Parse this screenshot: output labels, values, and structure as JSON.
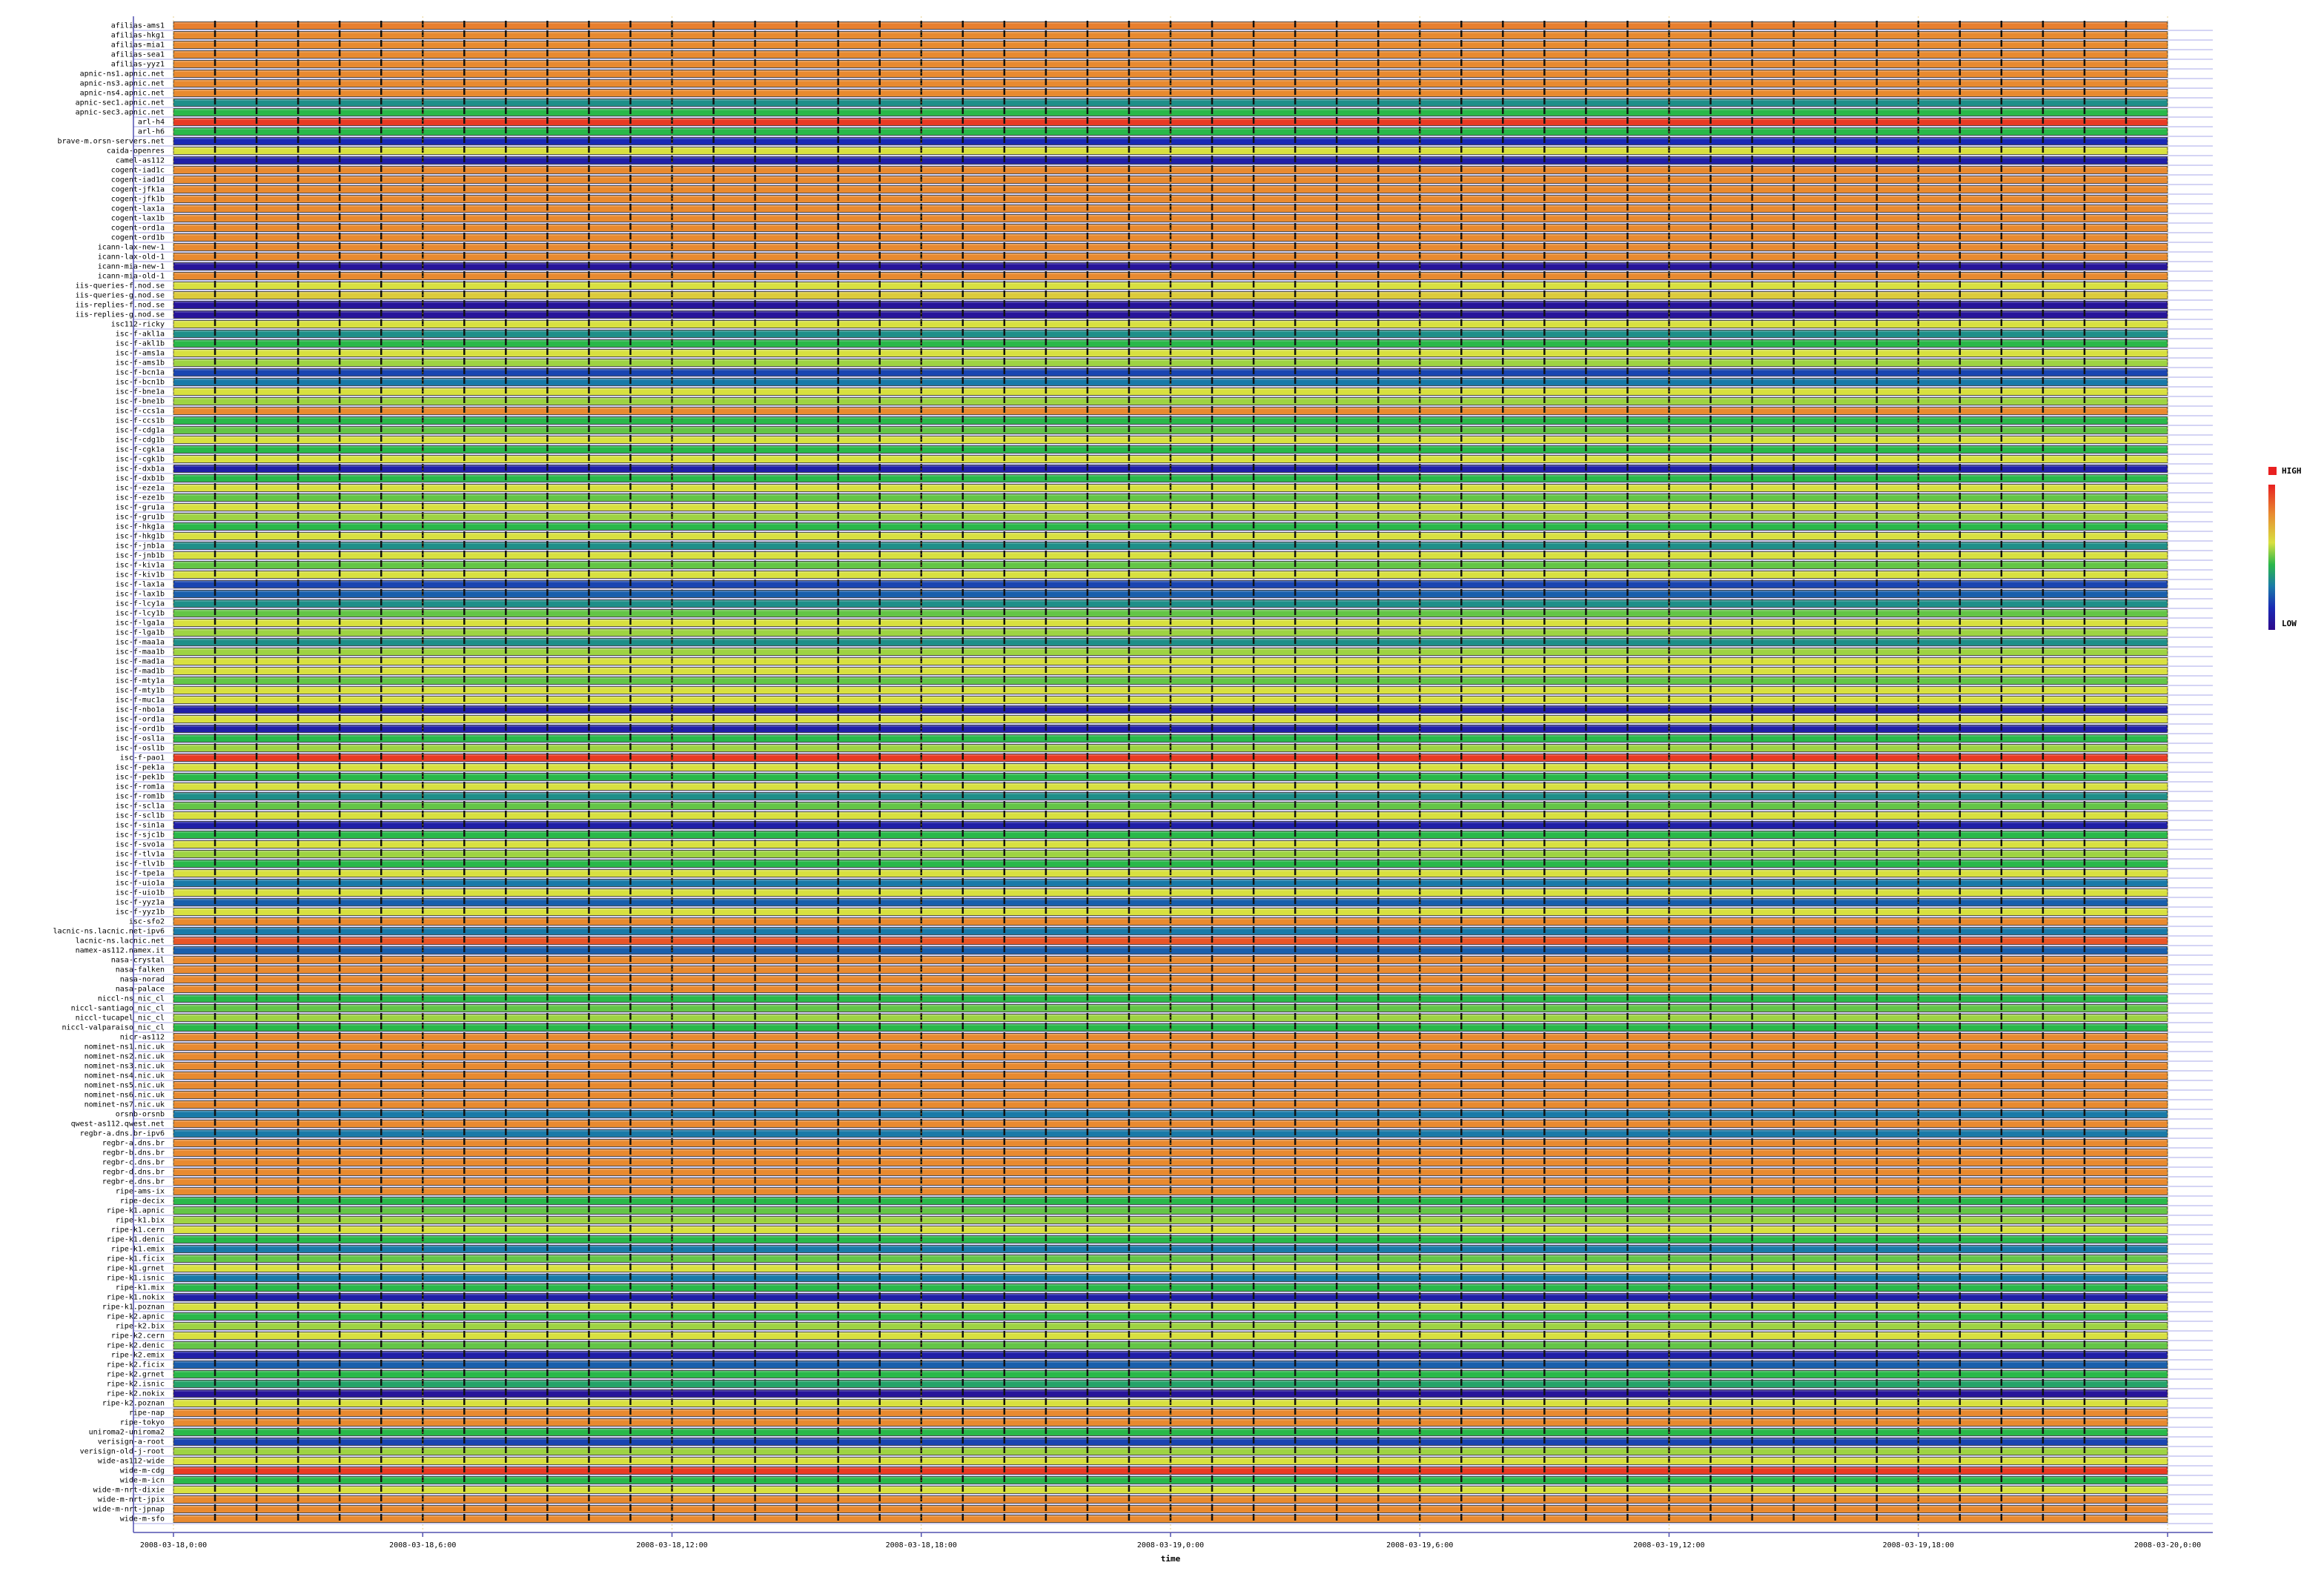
{
  "chart_data": {
    "type": "heatmap",
    "x_label": "time",
    "legend": {
      "high": "HIGH",
      "low": "LOW"
    },
    "zlim": [
      0,
      100
    ],
    "colorscale": [
      [
        0,
        "#2d0a8c"
      ],
      [
        15,
        "#1a2ab5"
      ],
      [
        30,
        "#1a7aa8"
      ],
      [
        45,
        "#2ab84a"
      ],
      [
        60,
        "#d8e040"
      ],
      [
        80,
        "#e88a30"
      ],
      [
        100,
        "#e82020"
      ]
    ],
    "xlim": [
      0,
      48
    ],
    "xticks": [
      {
        "value": 0,
        "label": "2008-03-18,0:00"
      },
      {
        "value": 6,
        "label": "2008-03-18,6:00"
      },
      {
        "value": 12,
        "label": "2008-03-18,12:00"
      },
      {
        "value": 18,
        "label": "2008-03-18,18:00"
      },
      {
        "value": 24,
        "label": "2008-03-19,0:00"
      },
      {
        "value": 30,
        "label": "2008-03-19,6:00"
      },
      {
        "value": 36,
        "label": "2008-03-19,12:00"
      },
      {
        "value": 42,
        "label": "2008-03-19,18:00"
      },
      {
        "value": 48,
        "label": "2008-03-20,0:00"
      }
    ],
    "categories": [
      "afilias-ams1",
      "afilias-hkg1",
      "afilias-mia1",
      "afilias-sea1",
      "afilias-yyz1",
      "apnic-ns1.apnic.net",
      "apnic-ns3.apnic.net",
      "apnic-ns4.apnic.net",
      "apnic-sec1.apnic.net",
      "apnic-sec3.apnic.net",
      "arl-h4",
      "arl-h6",
      "brave-m.orsn-servers.net",
      "caida-openres",
      "camel-as112",
      "cogent-iad1c",
      "cogent-iad1d",
      "cogent-jfk1a",
      "cogent-jfk1b",
      "cogent-lax1a",
      "cogent-lax1b",
      "cogent-ord1a",
      "cogent-ord1b",
      "icann-lax-new-1",
      "icann-lax-old-1",
      "icann-mia-new-1",
      "icann-mia-old-1",
      "iis-queries-f.nod.se",
      "iis-queries-g.nod.se",
      "iis-replies-f.nod.se",
      "iis-replies-g.nod.se",
      "isc112-ricky",
      "isc-f-akl1a",
      "isc-f-akl1b",
      "isc-f-ams1a",
      "isc-f-ams1b",
      "isc-f-bcn1a",
      "isc-f-bcn1b",
      "isc-f-bne1a",
      "isc-f-bne1b",
      "isc-f-ccs1a",
      "isc-f-ccs1b",
      "isc-f-cdg1a",
      "isc-f-cdg1b",
      "isc-f-cgk1a",
      "isc-f-cgk1b",
      "isc-f-dxb1a",
      "isc-f-dxb1b",
      "isc-f-eze1a",
      "isc-f-eze1b",
      "isc-f-gru1a",
      "isc-f-gru1b",
      "isc-f-hkg1a",
      "isc-f-hkg1b",
      "isc-f-jnb1a",
      "isc-f-jnb1b",
      "isc-f-kiv1a",
      "isc-f-kiv1b",
      "isc-f-lax1a",
      "isc-f-lax1b",
      "isc-f-lcy1a",
      "isc-f-lcy1b",
      "isc-f-lga1a",
      "isc-f-lga1b",
      "isc-f-maa1a",
      "isc-f-maa1b",
      "isc-f-mad1a",
      "isc-f-mad1b",
      "isc-f-mty1a",
      "isc-f-mty1b",
      "isc-f-muc1a",
      "isc-f-nbo1a",
      "isc-f-ord1a",
      "isc-f-ord1b",
      "isc-f-osl1a",
      "isc-f-osl1b",
      "isc-f-pao1",
      "isc-f-pek1a",
      "isc-f-pek1b",
      "isc-f-rom1a",
      "isc-f-rom1b",
      "isc-f-scl1a",
      "isc-f-scl1b",
      "isc-f-sin1a",
      "isc-f-sjc1b",
      "isc-f-svo1a",
      "isc-f-tlv1a",
      "isc-f-tlv1b",
      "isc-f-tpe1a",
      "isc-f-uio1a",
      "isc-f-uio1b",
      "isc-f-yyz1a",
      "isc-f-yyz1b",
      "isc-sfo2",
      "lacnic-ns.lacnic.net-ipv6",
      "lacnic-ns.lacnic.net",
      "namex-as112.namex.it",
      "nasa-crystal",
      "nasa-falken",
      "nasa-norad",
      "nasa-palace",
      "niccl-ns_nic_cl",
      "niccl-santiago_nic_cl",
      "niccl-tucapel_nic_cl",
      "niccl-valparaiso_nic_cl",
      "nicr-as112",
      "nominet-ns1.nic.uk",
      "nominet-ns2.nic.uk",
      "nominet-ns3.nic.uk",
      "nominet-ns4.nic.uk",
      "nominet-ns5.nic.uk",
      "nominet-ns6.nic.uk",
      "nominet-ns7.nic.uk",
      "orsnb-orsnb",
      "qwest-as112.qwest.net",
      "regbr-a.dns.br-ipv6",
      "regbr-a.dns.br",
      "regbr-b.dns.br",
      "regbr-c.dns.br",
      "regbr-d.dns.br",
      "regbr-e.dns.br",
      "ripe-ams-ix",
      "ripe-decix",
      "ripe-k1.apnic",
      "ripe-k1.bix",
      "ripe-k1.cern",
      "ripe-k1.denic",
      "ripe-k1.emix",
      "ripe-k1.ficix",
      "ripe-k1.grnet",
      "ripe-k1.isnic",
      "ripe-k1.mix",
      "ripe-k1.nokix",
      "ripe-k1.poznan",
      "ripe-k2.apnic",
      "ripe-k2.bix",
      "ripe-k2.cern",
      "ripe-k2.denic",
      "ripe-k2.emix",
      "ripe-k2.ficix",
      "ripe-k2.grnet",
      "ripe-k2.isnic",
      "ripe-k2.nokix",
      "ripe-k2.poznan",
      "ripe-nap",
      "ripe-tokyo",
      "uniroma2-uniroma2",
      "verisign-a-root",
      "verisign-old-j-root",
      "wide-as112-wide",
      "wide-m-cdg",
      "wide-m-icn",
      "wide-m-nrt-dixie",
      "wide-m-nrt-jpix",
      "wide-m-nrt-jpnap",
      "wide-m-sfo"
    ],
    "values": [
      82,
      80,
      80,
      80,
      80,
      80,
      80,
      80,
      35,
      45,
      95,
      45,
      15,
      60,
      10,
      80,
      80,
      80,
      80,
      80,
      80,
      80,
      80,
      80,
      80,
      5,
      80,
      60,
      65,
      5,
      5,
      60,
      35,
      45,
      60,
      55,
      20,
      30,
      60,
      55,
      80,
      45,
      50,
      60,
      45,
      60,
      10,
      45,
      60,
      50,
      60,
      55,
      45,
      60,
      35,
      60,
      50,
      60,
      20,
      25,
      35,
      50,
      60,
      55,
      35,
      55,
      60,
      60,
      50,
      60,
      60,
      10,
      60,
      10,
      45,
      55,
      95,
      60,
      45,
      60,
      35,
      50,
      60,
      10,
      45,
      60,
      55,
      45,
      60,
      30,
      60,
      25,
      60,
      80,
      30,
      90,
      25,
      80,
      80,
      80,
      80,
      45,
      50,
      55,
      45,
      80,
      80,
      80,
      80,
      80,
      80,
      80,
      80,
      30,
      80,
      30,
      80,
      80,
      80,
      80,
      80,
      80,
      45,
      50,
      55,
      60,
      45,
      30,
      50,
      60,
      30,
      45,
      10,
      60,
      45,
      55,
      60,
      50,
      10,
      25,
      45,
      40,
      5,
      60,
      80,
      80,
      45,
      20,
      55,
      60,
      95,
      45,
      60,
      80,
      80,
      80
    ]
  }
}
